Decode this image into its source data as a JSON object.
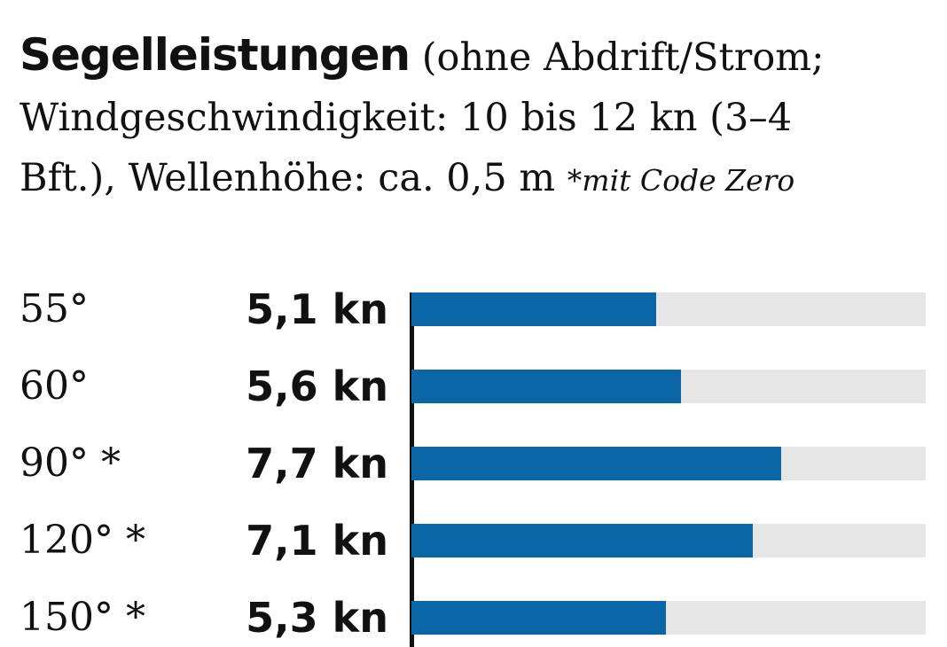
{
  "header": {
    "title": "Segelleistungen",
    "subtitle_a": "(ohne Abdrift/Strom;",
    "subtitle_b": "Windgeschwindigkeit: 10 bis 12 kn (3–4",
    "subtitle_c": "Bft.), Wellenhöhe: ca. 0,5 m",
    "note": "*mit Code Zero"
  },
  "colors": {
    "bar": "#0b66a8",
    "track": "#e6e6e6"
  },
  "chart_data": {
    "type": "bar",
    "orientation": "horizontal",
    "categories": [
      "55°",
      "60°",
      "90° *",
      "120° *",
      "150° *"
    ],
    "values": [
      5.1,
      5.6,
      7.7,
      7.1,
      5.3
    ],
    "value_labels": [
      "5,1 kn",
      "5,6 kn",
      "7,7 kn",
      "7,1 kn",
      "5,3 kn"
    ],
    "xlim": [
      0,
      10.7
    ]
  }
}
